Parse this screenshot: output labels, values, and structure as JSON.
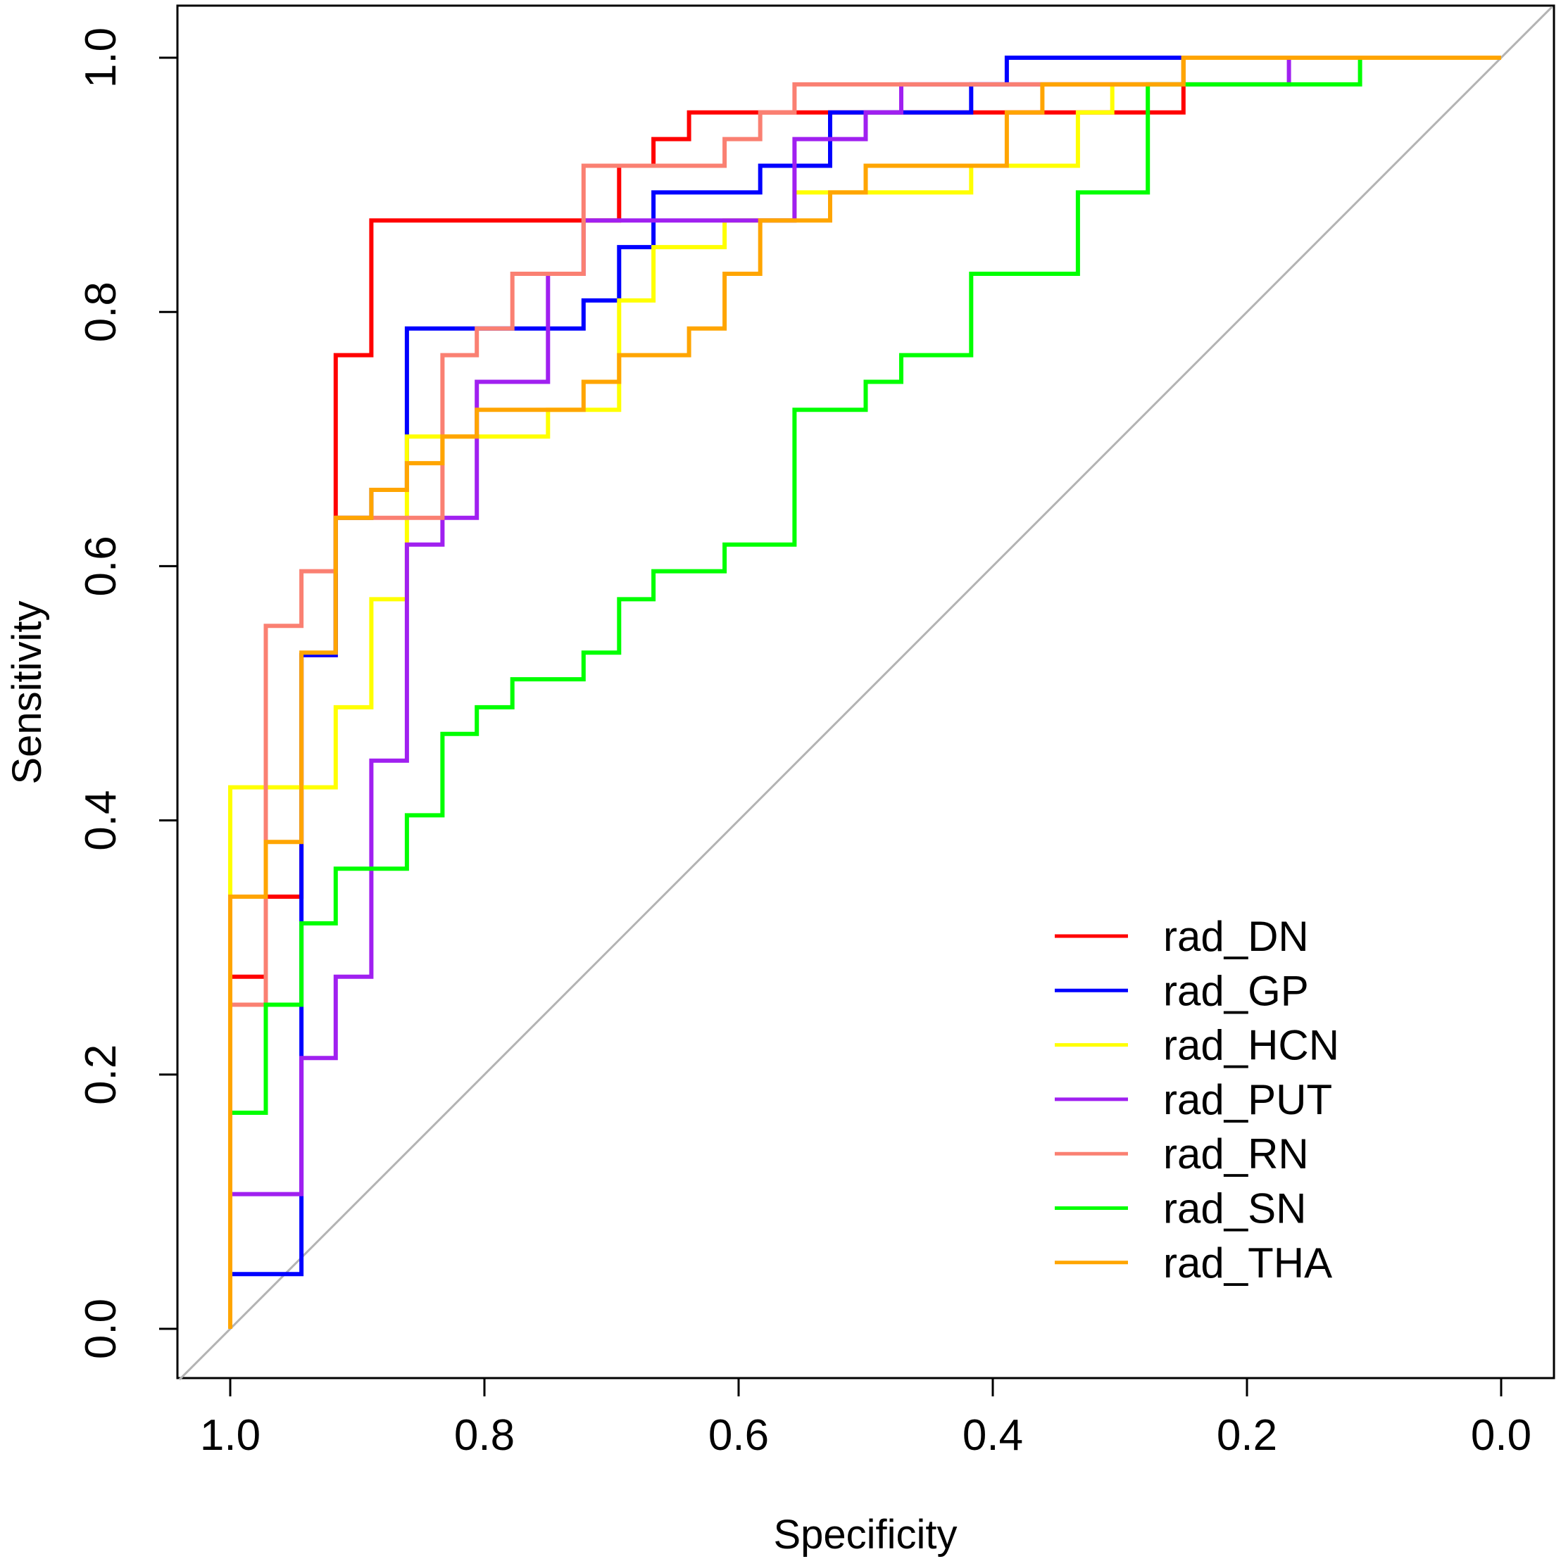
{
  "chart_data": {
    "type": "line",
    "title": "",
    "xlabel": "Specificity",
    "ylabel": "Sensitivity",
    "xlim": [
      1.0,
      0.0
    ],
    "ylim": [
      0.0,
      1.0
    ],
    "x_reversed": true,
    "x_ticks": [
      "1.0",
      "0.8",
      "0.6",
      "0.4",
      "0.2",
      "0.0"
    ],
    "x_tick_values": [
      1.0,
      0.8,
      0.6,
      0.4,
      0.2,
      0.0
    ],
    "y_ticks": [
      "0.0",
      "0.2",
      "0.4",
      "0.6",
      "0.8",
      "1.0"
    ],
    "y_tick_values": [
      0.0,
      0.2,
      0.4,
      0.6,
      0.8,
      1.0
    ],
    "grid": false,
    "legend_position": "bottom-right",
    "reference_line": {
      "from": [
        1.0,
        0.0
      ],
      "to": [
        0.0,
        1.0
      ],
      "color": "#b3b3b3"
    },
    "series": [
      {
        "name": "rad_DN",
        "color": "#ff0000",
        "points": [
          [
            1.0,
            0.0
          ],
          [
            1.0,
            0.277
          ],
          [
            0.972,
            0.277
          ],
          [
            0.972,
            0.34
          ],
          [
            0.944,
            0.34
          ],
          [
            0.944,
            0.53
          ],
          [
            0.917,
            0.53
          ],
          [
            0.917,
            0.766
          ],
          [
            0.889,
            0.766
          ],
          [
            0.889,
            0.872
          ],
          [
            0.694,
            0.872
          ],
          [
            0.694,
            0.915
          ],
          [
            0.667,
            0.915
          ],
          [
            0.667,
            0.936
          ],
          [
            0.639,
            0.936
          ],
          [
            0.639,
            0.957
          ],
          [
            0.25,
            0.957
          ],
          [
            0.25,
            1.0
          ],
          [
            0.0,
            1.0
          ]
        ]
      },
      {
        "name": "rad_GP",
        "color": "#0000ff",
        "points": [
          [
            1.0,
            0.0
          ],
          [
            1.0,
            0.043
          ],
          [
            0.944,
            0.043
          ],
          [
            0.944,
            0.34
          ],
          [
            0.944,
            0.53
          ],
          [
            0.917,
            0.53
          ],
          [
            0.917,
            0.638
          ],
          [
            0.889,
            0.638
          ],
          [
            0.889,
            0.66
          ],
          [
            0.861,
            0.66
          ],
          [
            0.861,
            0.787
          ],
          [
            0.722,
            0.787
          ],
          [
            0.722,
            0.809
          ],
          [
            0.694,
            0.809
          ],
          [
            0.694,
            0.851
          ],
          [
            0.667,
            0.851
          ],
          [
            0.667,
            0.894
          ],
          [
            0.583,
            0.894
          ],
          [
            0.583,
            0.915
          ],
          [
            0.528,
            0.915
          ],
          [
            0.528,
            0.957
          ],
          [
            0.417,
            0.957
          ],
          [
            0.417,
            0.979
          ],
          [
            0.389,
            0.979
          ],
          [
            0.389,
            1.0
          ],
          [
            0.0,
            1.0
          ]
        ]
      },
      {
        "name": "rad_HCN",
        "color": "#ffff00",
        "points": [
          [
            1.0,
            0.0
          ],
          [
            1.0,
            0.426
          ],
          [
            0.917,
            0.426
          ],
          [
            0.917,
            0.489
          ],
          [
            0.889,
            0.489
          ],
          [
            0.889,
            0.574
          ],
          [
            0.861,
            0.574
          ],
          [
            0.861,
            0.702
          ],
          [
            0.75,
            0.702
          ],
          [
            0.75,
            0.723
          ],
          [
            0.694,
            0.723
          ],
          [
            0.694,
            0.809
          ],
          [
            0.667,
            0.809
          ],
          [
            0.667,
            0.851
          ],
          [
            0.611,
            0.851
          ],
          [
            0.611,
            0.872
          ],
          [
            0.556,
            0.872
          ],
          [
            0.556,
            0.894
          ],
          [
            0.417,
            0.894
          ],
          [
            0.417,
            0.915
          ],
          [
            0.333,
            0.915
          ],
          [
            0.333,
            0.957
          ],
          [
            0.306,
            0.957
          ],
          [
            0.306,
            0.979
          ],
          [
            0.25,
            0.979
          ],
          [
            0.25,
            1.0
          ],
          [
            0.0,
            1.0
          ]
        ]
      },
      {
        "name": "rad_PUT",
        "color": "#a020f0",
        "points": [
          [
            1.0,
            0.0
          ],
          [
            1.0,
            0.106
          ],
          [
            0.944,
            0.106
          ],
          [
            0.944,
            0.213
          ],
          [
            0.917,
            0.213
          ],
          [
            0.917,
            0.277
          ],
          [
            0.889,
            0.277
          ],
          [
            0.889,
            0.447
          ],
          [
            0.861,
            0.447
          ],
          [
            0.861,
            0.617
          ],
          [
            0.833,
            0.617
          ],
          [
            0.833,
            0.638
          ],
          [
            0.806,
            0.638
          ],
          [
            0.806,
            0.745
          ],
          [
            0.75,
            0.745
          ],
          [
            0.75,
            0.83
          ],
          [
            0.722,
            0.83
          ],
          [
            0.722,
            0.872
          ],
          [
            0.556,
            0.872
          ],
          [
            0.556,
            0.936
          ],
          [
            0.5,
            0.936
          ],
          [
            0.5,
            0.957
          ],
          [
            0.472,
            0.957
          ],
          [
            0.472,
            0.979
          ],
          [
            0.167,
            0.979
          ],
          [
            0.167,
            1.0
          ],
          [
            0.0,
            1.0
          ]
        ]
      },
      {
        "name": "rad_RN",
        "color": "#fa8072",
        "points": [
          [
            1.0,
            0.0
          ],
          [
            1.0,
            0.255
          ],
          [
            0.972,
            0.255
          ],
          [
            0.972,
            0.553
          ],
          [
            0.944,
            0.553
          ],
          [
            0.944,
            0.596
          ],
          [
            0.917,
            0.596
          ],
          [
            0.917,
            0.638
          ],
          [
            0.833,
            0.638
          ],
          [
            0.833,
            0.766
          ],
          [
            0.806,
            0.766
          ],
          [
            0.806,
            0.787
          ],
          [
            0.778,
            0.787
          ],
          [
            0.778,
            0.83
          ],
          [
            0.722,
            0.83
          ],
          [
            0.722,
            0.915
          ],
          [
            0.611,
            0.915
          ],
          [
            0.611,
            0.936
          ],
          [
            0.583,
            0.936
          ],
          [
            0.583,
            0.957
          ],
          [
            0.556,
            0.957
          ],
          [
            0.556,
            0.979
          ],
          [
            0.25,
            0.979
          ],
          [
            0.25,
            1.0
          ],
          [
            0.0,
            1.0
          ]
        ]
      },
      {
        "name": "rad_SN",
        "color": "#00ff00",
        "points": [
          [
            1.0,
            0.0
          ],
          [
            1.0,
            0.17
          ],
          [
            0.972,
            0.17
          ],
          [
            0.972,
            0.255
          ],
          [
            0.944,
            0.255
          ],
          [
            0.944,
            0.319
          ],
          [
            0.917,
            0.319
          ],
          [
            0.917,
            0.362
          ],
          [
            0.861,
            0.362
          ],
          [
            0.861,
            0.404
          ],
          [
            0.833,
            0.404
          ],
          [
            0.833,
            0.468
          ],
          [
            0.806,
            0.468
          ],
          [
            0.806,
            0.489
          ],
          [
            0.778,
            0.489
          ],
          [
            0.778,
            0.511
          ],
          [
            0.722,
            0.511
          ],
          [
            0.722,
            0.532
          ],
          [
            0.694,
            0.532
          ],
          [
            0.694,
            0.574
          ],
          [
            0.667,
            0.574
          ],
          [
            0.667,
            0.596
          ],
          [
            0.611,
            0.596
          ],
          [
            0.611,
            0.617
          ],
          [
            0.556,
            0.617
          ],
          [
            0.556,
            0.723
          ],
          [
            0.5,
            0.723
          ],
          [
            0.5,
            0.745
          ],
          [
            0.472,
            0.745
          ],
          [
            0.472,
            0.766
          ],
          [
            0.417,
            0.766
          ],
          [
            0.417,
            0.83
          ],
          [
            0.333,
            0.83
          ],
          [
            0.333,
            0.894
          ],
          [
            0.278,
            0.894
          ],
          [
            0.278,
            0.979
          ],
          [
            0.111,
            0.979
          ],
          [
            0.111,
            1.0
          ],
          [
            0.0,
            1.0
          ]
        ]
      },
      {
        "name": "rad_THA",
        "color": "#ffa500",
        "points": [
          [
            1.0,
            0.0
          ],
          [
            1.0,
            0.34
          ],
          [
            0.972,
            0.34
          ],
          [
            0.972,
            0.383
          ],
          [
            0.944,
            0.383
          ],
          [
            0.944,
            0.532
          ],
          [
            0.917,
            0.532
          ],
          [
            0.917,
            0.638
          ],
          [
            0.889,
            0.638
          ],
          [
            0.889,
            0.66
          ],
          [
            0.861,
            0.66
          ],
          [
            0.861,
            0.681
          ],
          [
            0.833,
            0.681
          ],
          [
            0.833,
            0.702
          ],
          [
            0.806,
            0.702
          ],
          [
            0.806,
            0.723
          ],
          [
            0.722,
            0.723
          ],
          [
            0.722,
            0.745
          ],
          [
            0.694,
            0.745
          ],
          [
            0.694,
            0.766
          ],
          [
            0.639,
            0.766
          ],
          [
            0.639,
            0.787
          ],
          [
            0.611,
            0.787
          ],
          [
            0.611,
            0.83
          ],
          [
            0.583,
            0.83
          ],
          [
            0.583,
            0.872
          ],
          [
            0.528,
            0.872
          ],
          [
            0.528,
            0.894
          ],
          [
            0.5,
            0.894
          ],
          [
            0.5,
            0.915
          ],
          [
            0.389,
            0.915
          ],
          [
            0.389,
            0.957
          ],
          [
            0.361,
            0.957
          ],
          [
            0.361,
            0.979
          ],
          [
            0.25,
            0.979
          ],
          [
            0.25,
            1.0
          ],
          [
            0.0,
            1.0
          ]
        ]
      }
    ]
  }
}
